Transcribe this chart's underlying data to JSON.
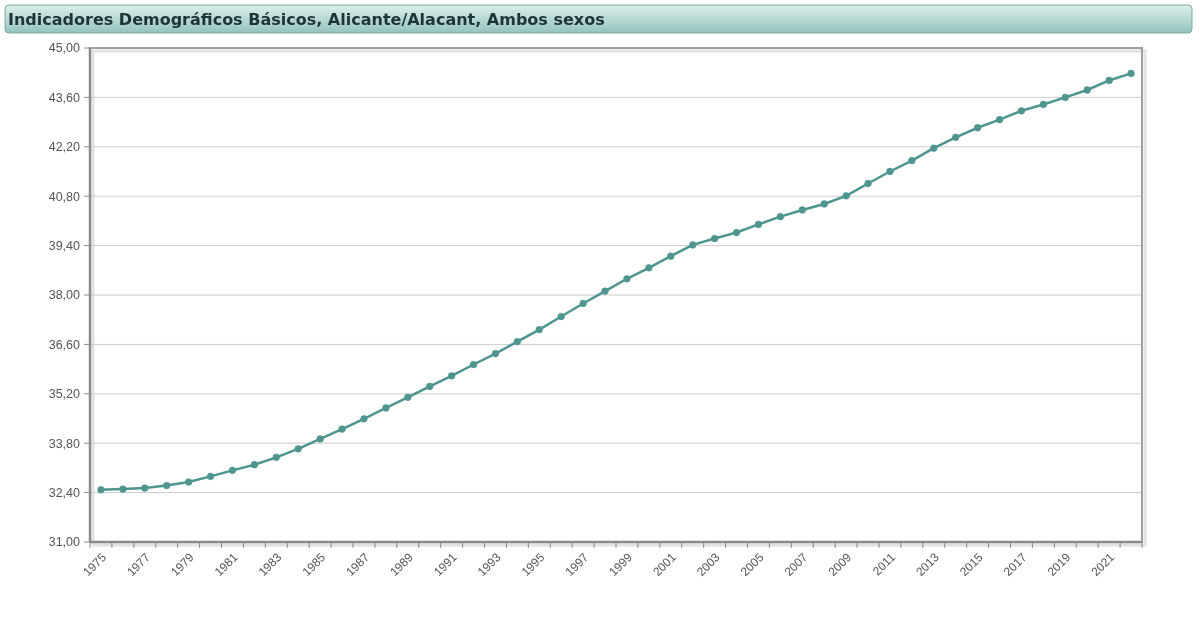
{
  "chart_data": {
    "type": "line",
    "title": "Indicadores Demográficos Básicos, Alicante/Alacant, Ambos sexos",
    "categories": [
      "1975",
      null,
      "1977",
      null,
      "1979",
      null,
      "1981",
      null,
      "1983",
      null,
      "1985",
      null,
      "1987",
      null,
      "1989",
      null,
      "1991",
      null,
      "1993",
      null,
      "1995",
      null,
      "1997",
      null,
      "1999",
      null,
      "2001",
      null,
      "2003",
      null,
      "2005",
      null,
      "2007",
      null,
      "2009",
      null,
      "2011",
      null,
      "2013",
      null,
      "2015",
      null,
      "2017",
      null,
      "2019",
      null,
      "2021",
      null
    ],
    "series": [
      {
        "color": "#4e958f",
        "values": [
          32.48,
          32.5,
          32.53,
          32.6,
          32.7,
          32.86,
          33.03,
          33.19,
          33.4,
          33.64,
          33.92,
          34.2,
          34.49,
          34.8,
          35.1,
          35.41,
          35.71,
          36.03,
          36.34,
          36.68,
          37.02,
          37.39,
          37.76,
          38.11,
          38.46,
          38.77,
          39.1,
          39.42,
          39.6,
          39.77,
          40.0,
          40.22,
          40.41,
          40.58,
          40.81,
          41.16,
          41.5,
          41.81,
          42.16,
          42.47,
          42.74,
          42.97,
          43.22,
          43.4,
          43.6,
          43.81,
          44.08,
          44.28
        ]
      }
    ],
    "ylim": [
      31,
      45
    ],
    "yticks": [
      {
        "value": 31,
        "label": "31,00"
      },
      {
        "value": 32.4,
        "label": "32,40"
      },
      {
        "value": 33.8,
        "label": "33,80"
      },
      {
        "value": 35.2,
        "label": "35,20"
      },
      {
        "value": 36.6,
        "label": "36,60"
      },
      {
        "value": 38,
        "label": "38,00"
      },
      {
        "value": 39.4,
        "label": "39,40"
      },
      {
        "value": 40.8,
        "label": "40,80"
      },
      {
        "value": 42.2,
        "label": "42,20"
      },
      {
        "value": 43.6,
        "label": "43,60"
      },
      {
        "value": 45,
        "label": "45,00"
      }
    ],
    "grid": "y",
    "marker": "circle",
    "line_style": "solid"
  }
}
